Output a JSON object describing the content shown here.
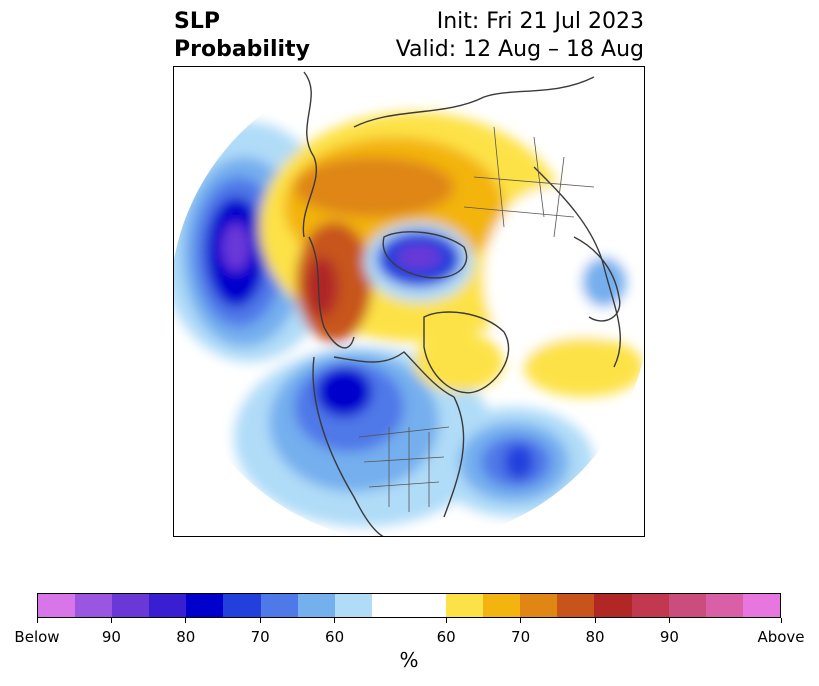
{
  "header": {
    "title_line1": "SLP",
    "title_line2": "Probability",
    "init": "Init: Fri 21 Jul 2023",
    "valid": "Valid: 12 Aug – 18 Aug"
  },
  "colorbar": {
    "below_colors": [
      "#d875e8",
      "#9a56e0",
      "#6b38d8",
      "#3a1fd2",
      "#0000cd",
      "#2340dc",
      "#4f78e8",
      "#74afee",
      "#b0dcf8"
    ],
    "neutral_color": "#ffffff",
    "above_colors": [
      "#fde247",
      "#f3b40f",
      "#df8614",
      "#c8541b",
      "#b02726",
      "#c2384e",
      "#cb4d7e",
      "#d960a6",
      "#e876df"
    ],
    "tick_labels": [
      "Below",
      "90",
      "80",
      "70",
      "60",
      "60",
      "70",
      "80",
      "90",
      "Above"
    ],
    "unit_label": "%"
  }
}
